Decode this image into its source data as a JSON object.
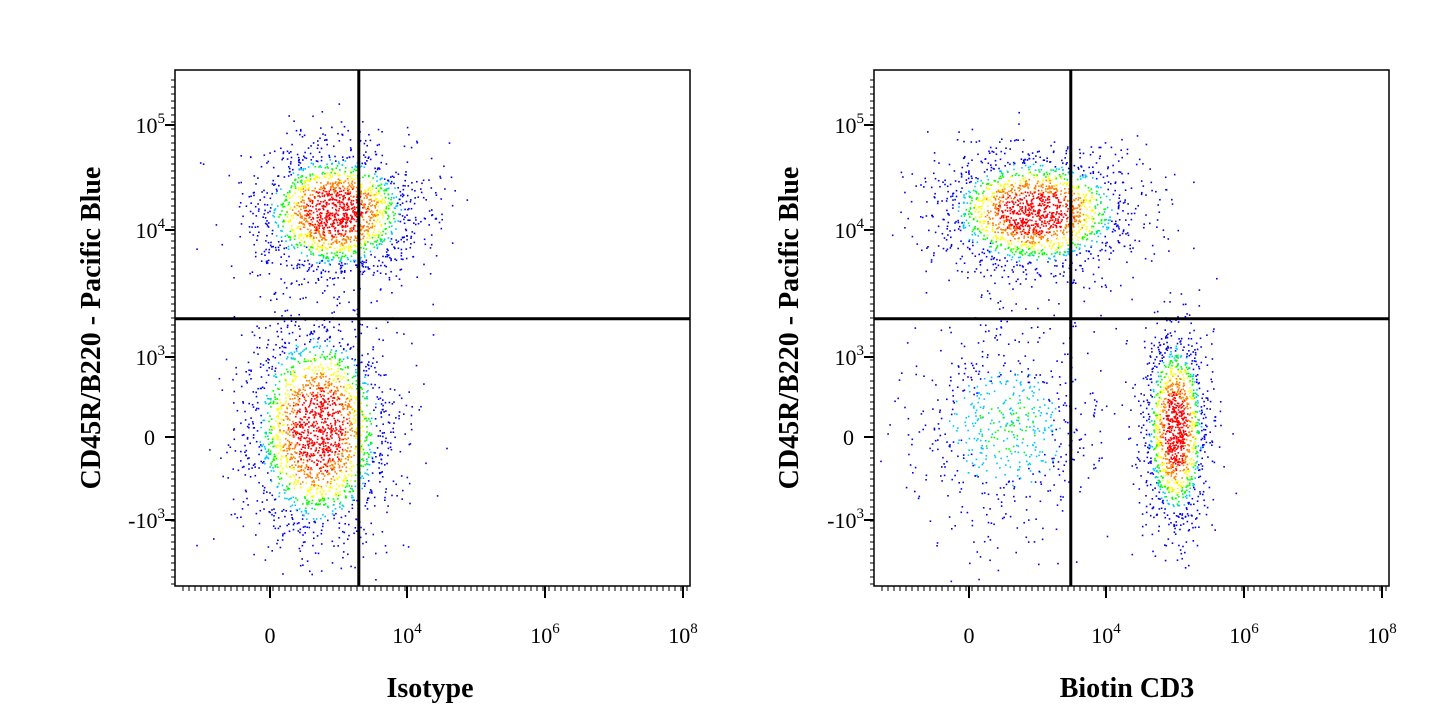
{
  "chart_data": [
    {
      "type": "scatter",
      "style": "flow-cytometry-density-dot-plot",
      "xlabel": "Isotype",
      "ylabel": "CD45R/B220 - Pacific Blue",
      "x_scale": "biexponential",
      "y_scale": "biexponential",
      "x_tick_labels": [
        {
          "value": 0,
          "base": "0",
          "exp": ""
        },
        {
          "value": 10000,
          "base": "10",
          "exp": "4"
        },
        {
          "value": 1000000,
          "base": "10",
          "exp": "6"
        },
        {
          "value": 100000000,
          "base": "10",
          "exp": "8"
        }
      ],
      "y_tick_labels": [
        {
          "value": -1000,
          "base": "-10",
          "exp": "3"
        },
        {
          "value": 0,
          "base": "0",
          "exp": ""
        },
        {
          "value": 1000,
          "base": "10",
          "exp": "3"
        },
        {
          "value": 10000,
          "base": "10",
          "exp": "4"
        },
        {
          "value": 100000,
          "base": "10",
          "exp": "5"
        }
      ],
      "quadrant_gate": {
        "x": 1500,
        "y": 2000
      },
      "populations": [
        {
          "x_center": 600,
          "y_center": 15000,
          "density": "high"
        },
        {
          "x_center": 300,
          "y_center": 100,
          "density": "high"
        }
      ],
      "color_scale": [
        "#0000ff",
        "#00c8ff",
        "#00ff00",
        "#ffff00",
        "#ff8000",
        "#ff0000"
      ]
    },
    {
      "type": "scatter",
      "style": "flow-cytometry-density-dot-plot",
      "xlabel": "Biotin CD3",
      "ylabel": "CD45R/B220 - Pacific Blue",
      "x_scale": "biexponential",
      "y_scale": "biexponential",
      "x_tick_labels": [
        {
          "value": 0,
          "base": "0",
          "exp": ""
        },
        {
          "value": 10000,
          "base": "10",
          "exp": "4"
        },
        {
          "value": 1000000,
          "base": "10",
          "exp": "6"
        },
        {
          "value": 100000000,
          "base": "10",
          "exp": "8"
        }
      ],
      "y_tick_labels": [
        {
          "value": -1000,
          "base": "-10",
          "exp": "3"
        },
        {
          "value": 0,
          "base": "0",
          "exp": ""
        },
        {
          "value": 1000,
          "base": "10",
          "exp": "3"
        },
        {
          "value": 10000,
          "base": "10",
          "exp": "4"
        },
        {
          "value": 100000,
          "base": "10",
          "exp": "5"
        }
      ],
      "quadrant_gate": {
        "x": 2500,
        "y": 2000
      },
      "populations": [
        {
          "x_center": 600,
          "y_center": 15000,
          "density": "high"
        },
        {
          "x_center": 100000,
          "y_center": 100,
          "density": "high"
        },
        {
          "x_center": 200,
          "y_center": 150,
          "density": "low"
        }
      ],
      "color_scale": [
        "#0000ff",
        "#00c8ff",
        "#00ff00",
        "#ffff00",
        "#ff8000",
        "#ff0000"
      ]
    }
  ]
}
